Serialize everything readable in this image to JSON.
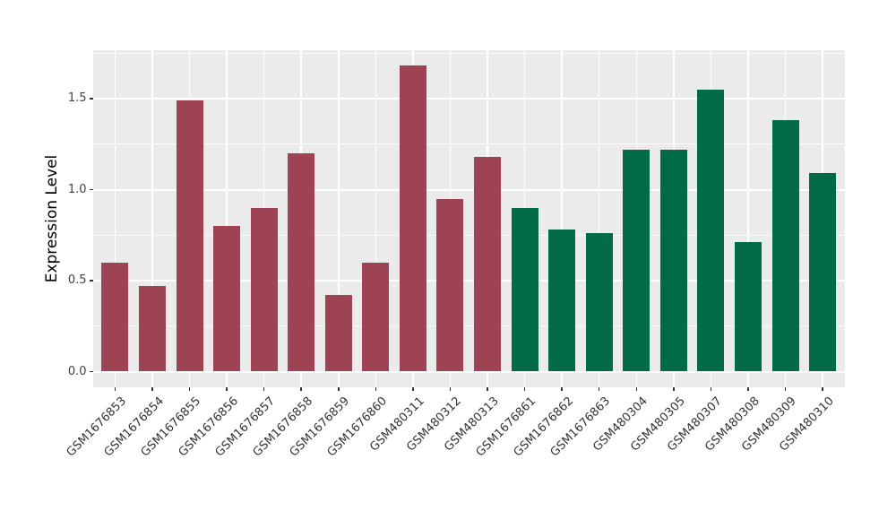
{
  "chart_data": {
    "type": "bar",
    "title": "",
    "xlabel": "",
    "ylabel": "Expression Level",
    "categories": [
      "GSM1676853",
      "GSM1676854",
      "GSM1676855",
      "GSM1676856",
      "GSM1676857",
      "GSM1676858",
      "GSM1676859",
      "GSM1676860",
      "GSM480311",
      "GSM480312",
      "GSM480313",
      "GSM1676861",
      "GSM1676862",
      "GSM1676863",
      "GSM480304",
      "GSM480305",
      "GSM480307",
      "GSM480308",
      "GSM480309",
      "GSM480310"
    ],
    "values": [
      0.6,
      0.47,
      1.49,
      0.8,
      0.9,
      1.2,
      0.42,
      0.6,
      1.68,
      0.95,
      1.18,
      0.9,
      0.78,
      0.76,
      1.22,
      1.22,
      1.55,
      0.71,
      1.38,
      1.09
    ],
    "bar_colors": [
      "#9D4354",
      "#9D4354",
      "#9D4354",
      "#9D4354",
      "#9D4354",
      "#9D4354",
      "#9D4354",
      "#9D4354",
      "#9D4354",
      "#9D4354",
      "#9D4354",
      "#006A49",
      "#006A49",
      "#006A49",
      "#006A49",
      "#006A49",
      "#006A49",
      "#006A49",
      "#006A49",
      "#006A49"
    ],
    "group_colors": {
      "maroon": "#9D4354",
      "green": "#006A49"
    },
    "yticks": [
      0.0,
      0.5,
      1.0,
      1.5
    ],
    "ytick_labels": [
      "0.0",
      "0.5",
      "1.0",
      "1.5"
    ],
    "y_minor_ticks": [
      0.25,
      0.75,
      1.25,
      1.75
    ],
    "ylim": [
      -0.084,
      1.766
    ],
    "panel_background": "#EBEBEB",
    "gridline_color": "#FFFFFF",
    "grid": "on",
    "legend": "none"
  }
}
